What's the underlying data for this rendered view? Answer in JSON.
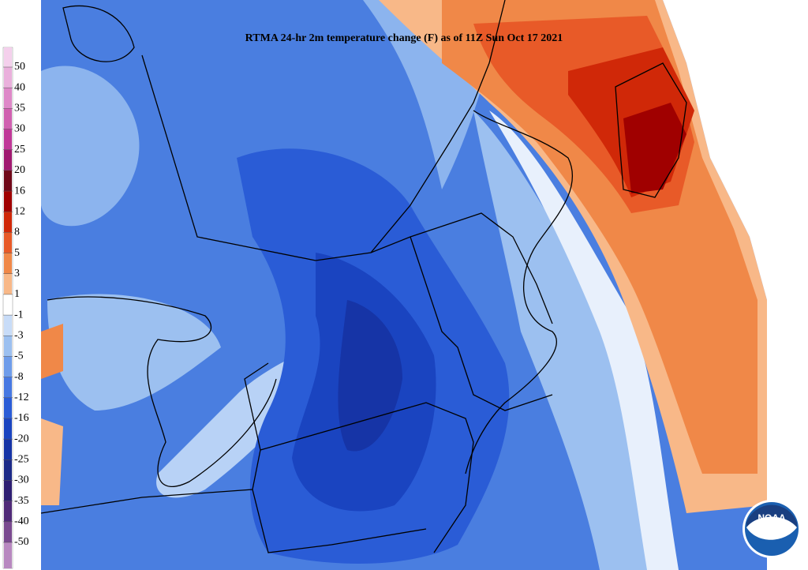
{
  "title": "RTMA 24-hr 2m temperature change (F) as of 11Z Sun Oct 17 2021",
  "colorbar": {
    "labels": [
      50,
      40,
      35,
      30,
      25,
      20,
      16,
      12,
      8,
      5,
      3,
      1,
      -1,
      -3,
      -5,
      -8,
      -12,
      -16,
      -20,
      -25,
      -30,
      -35,
      -40,
      -50
    ],
    "colors": [
      "#f4d0ec",
      "#eab0dc",
      "#de88c8",
      "#d060b0",
      "#c03898",
      "#a01870",
      "#700818",
      "#a00000",
      "#d02808",
      "#e85a28",
      "#f08848",
      "#f8b888",
      "#ffffff",
      "#c8dcf8",
      "#9cc0f0",
      "#6e9cea",
      "#4678e2",
      "#2a5cd6",
      "#1a44c0",
      "#1634a6",
      "#1c2a88",
      "#2e1e72",
      "#502a78",
      "#7a4a90",
      "#b888c0"
    ]
  },
  "logo": "NOAA"
}
